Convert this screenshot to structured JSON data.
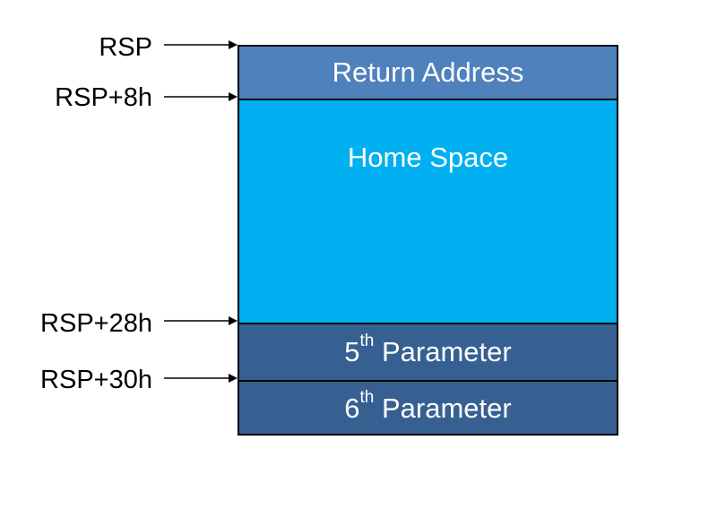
{
  "colors": {
    "return_address": "#4f81bd",
    "home_space": "#00b0f0",
    "parameter": "#376092",
    "border": "#000000"
  },
  "cells": {
    "return_address": "Return Address",
    "home_space": "Home Space",
    "param5_num": "5",
    "param5_sup": "th",
    "param5_label": "Parameter",
    "param6_num": "6",
    "param6_sup": "th",
    "param6_label": "Parameter"
  },
  "pointers": {
    "rsp": "RSP",
    "rsp_8h": "RSP+8h",
    "rsp_28h": "RSP+28h",
    "rsp_30h": "RSP+30h"
  }
}
